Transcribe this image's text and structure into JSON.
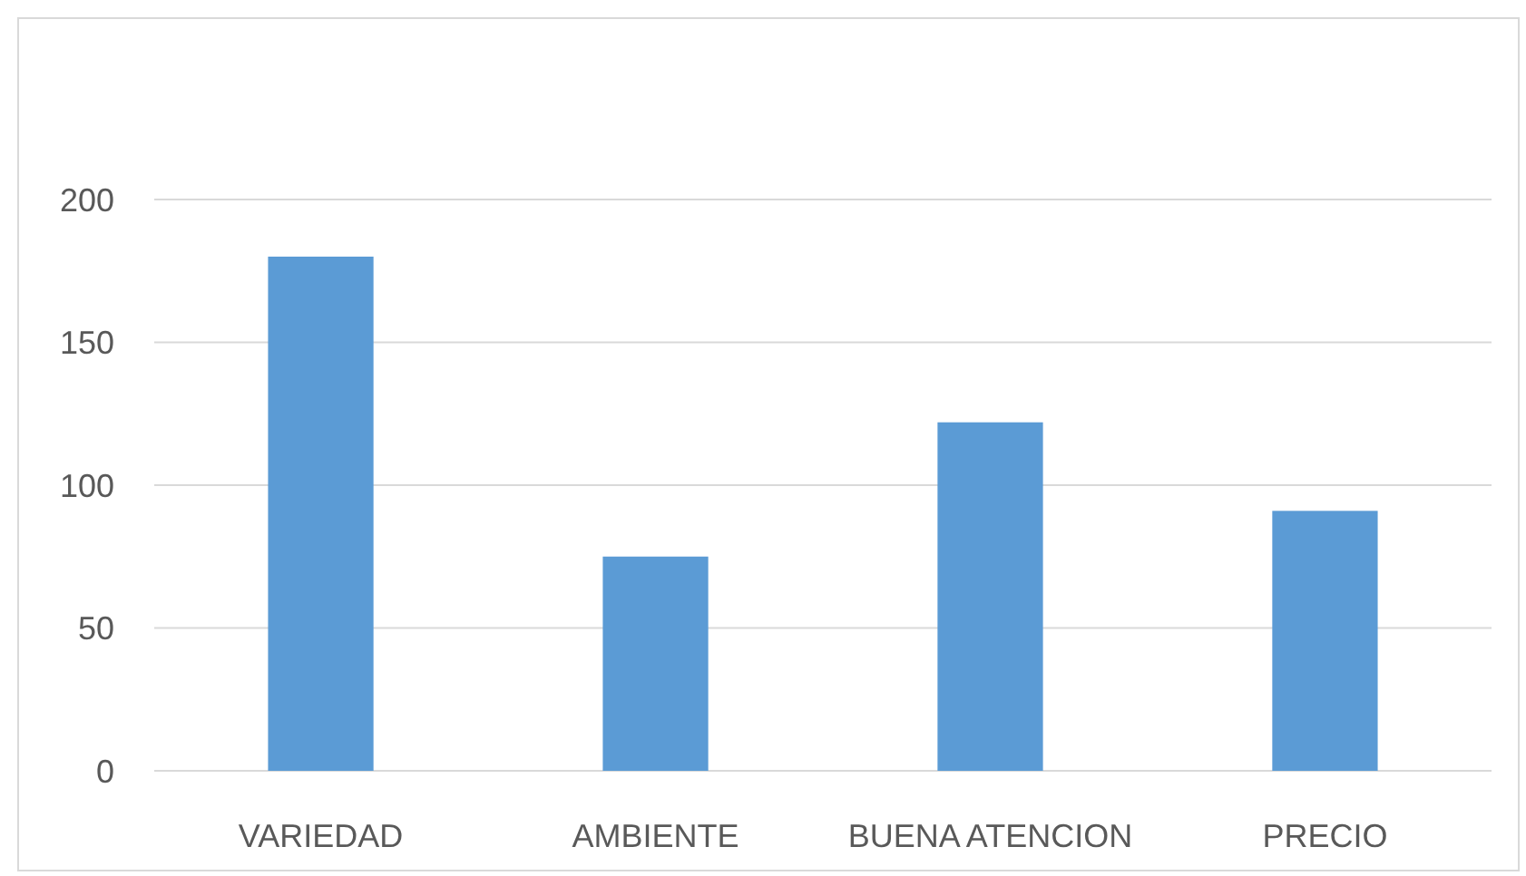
{
  "chart_data": {
    "type": "bar",
    "categories": [
      "VARIEDAD",
      "AMBIENTE",
      "BUENA ATENCION",
      "PRECIO"
    ],
    "values": [
      180,
      75,
      122,
      91
    ],
    "color": "#5b9bd5",
    "ylim": [
      0,
      200
    ],
    "yticks": [
      0,
      50,
      100,
      150,
      200
    ],
    "grid": "y"
  }
}
